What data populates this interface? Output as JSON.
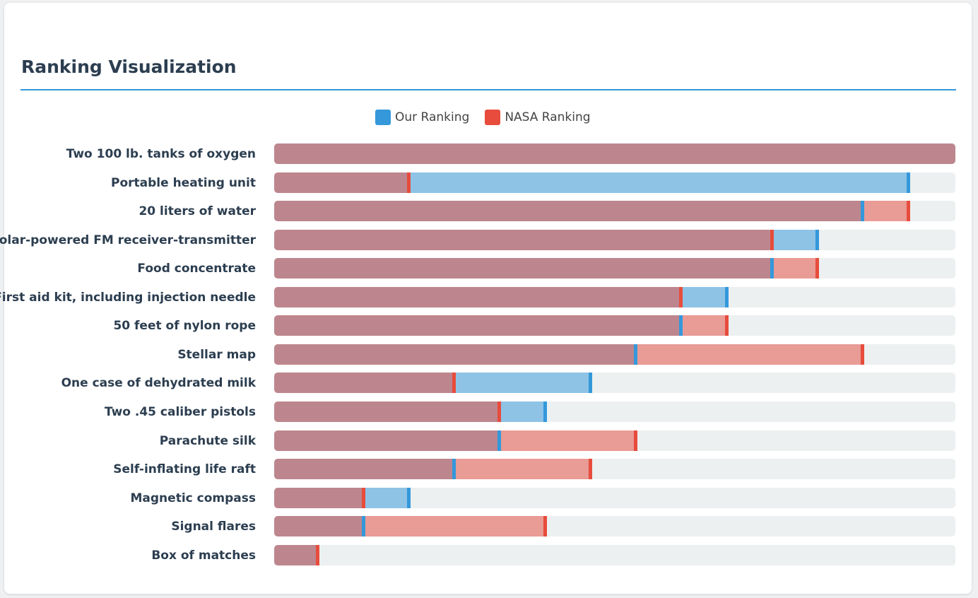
{
  "title": "Ranking Visualization",
  "legend": {
    "our": "Our Ranking",
    "nasa": "NASA Ranking"
  },
  "colors": {
    "our": "#3498db",
    "nasa": "#e74c3c",
    "overlap": "#bd868e",
    "our_only": "#8fc3e6",
    "nasa_only": "#e99b95",
    "track": "#ecf0f1"
  },
  "chart_data": {
    "type": "bar",
    "value_max": 15,
    "series": [
      {
        "name": "Our Ranking",
        "values": [
          15,
          14,
          13,
          12,
          11,
          10,
          9,
          8,
          7,
          6,
          5,
          4,
          3,
          2,
          1
        ]
      },
      {
        "name": "NASA Ranking",
        "values": [
          15,
          3,
          14,
          11,
          12,
          9,
          10,
          13,
          4,
          5,
          8,
          7,
          2,
          6,
          1
        ]
      }
    ],
    "categories": [
      "Two 100 lb. tanks of oxygen",
      "Portable heating unit",
      "20 liters of water",
      "Solar-powered FM receiver-transmitter",
      "Food concentrate",
      "First aid kit, including injection needle",
      "50 feet of nylon rope",
      "Stellar map",
      "One case of dehydrated milk",
      "Two .45 caliber pistols",
      "Parachute silk",
      "Self-inflating life raft",
      "Magnetic compass",
      "Signal flares",
      "Box of matches"
    ]
  }
}
